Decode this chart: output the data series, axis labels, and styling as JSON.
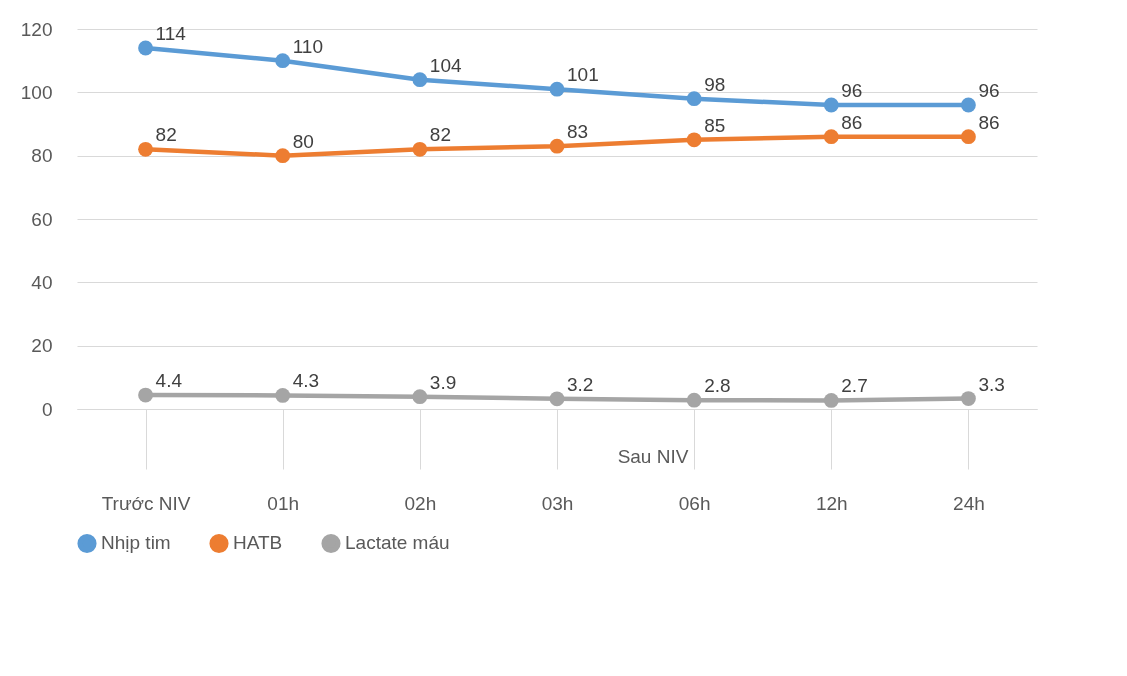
{
  "chart_data": {
    "type": "line",
    "categories": [
      "Trước NIV",
      "01h",
      "02h",
      "03h",
      "06h",
      "12h",
      "24h"
    ],
    "series": [
      {
        "name": "Nhịp tim",
        "color": "#5b9bd5",
        "values": [
          114,
          110,
          104,
          101,
          98,
          96,
          96
        ]
      },
      {
        "name": "HATB",
        "color": "#ed7d31",
        "values": [
          82,
          80,
          82,
          83,
          85,
          86,
          86
        ]
      },
      {
        "name": "Lactate máu",
        "color": "#a5a5a5",
        "values": [
          4.4,
          4.3,
          3.9,
          3.2,
          2.8,
          2.7,
          3.3
        ]
      }
    ],
    "ylim": [
      0,
      120
    ],
    "yticks": [
      0,
      20,
      40,
      60,
      80,
      100,
      120
    ],
    "grid": "y",
    "legend": "bottom",
    "marker": "circle",
    "line_style": "solid",
    "data_labels": true,
    "annotations": [
      "Sau NIV"
    ]
  }
}
